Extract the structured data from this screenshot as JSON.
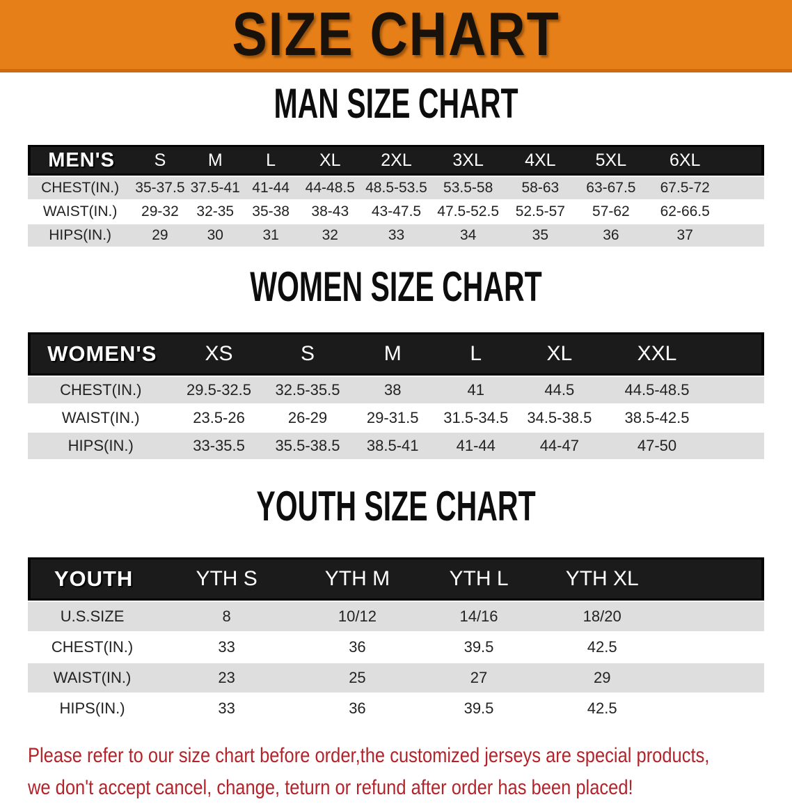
{
  "banner": {
    "title": "SIZE CHART"
  },
  "theme": {
    "banner_bg": "#e77f18",
    "header_bg": "#1b1b1b",
    "header_text": "#ffffff",
    "row_bg": "#ffffff",
    "row_alt_bg": "#dedede",
    "cell_text": "#222222",
    "disclaimer_color": "#b3232a"
  },
  "sections": [
    {
      "title": "MAN SIZE CHART",
      "group_label": "MEN'S",
      "size_headers": [
        "S",
        "M",
        "L",
        "XL",
        "2XL",
        "3XL",
        "4XL",
        "5XL",
        "6XL"
      ],
      "rows": [
        {
          "label": "CHEST(IN.)",
          "values": [
            "35-37.5",
            "37.5-41",
            "41-44",
            "44-48.5",
            "48.5-53.5",
            "53.5-58",
            "58-63",
            "63-67.5",
            "67.5-72"
          ]
        },
        {
          "label": "WAIST(IN.)",
          "values": [
            "29-32",
            "32-35",
            "35-38",
            "38-43",
            "43-47.5",
            "47.5-52.5",
            "52.5-57",
            "57-62",
            "62-66.5"
          ]
        },
        {
          "label": "HIPS(IN.)",
          "values": [
            "29",
            "30",
            "31",
            "32",
            "33",
            "34",
            "35",
            "36",
            "37"
          ]
        }
      ]
    },
    {
      "title": "WOMEN SIZE CHART",
      "group_label": "WOMEN'S",
      "size_headers": [
        "XS",
        "S",
        "M",
        "L",
        "XL",
        "XXL"
      ],
      "rows": [
        {
          "label": "CHEST(IN.)",
          "values": [
            "29.5-32.5",
            "32.5-35.5",
            "38",
            "41",
            "44.5",
            "44.5-48.5"
          ]
        },
        {
          "label": "WAIST(IN.)",
          "values": [
            "23.5-26",
            "26-29",
            "29-31.5",
            "31.5-34.5",
            "34.5-38.5",
            "38.5-42.5"
          ]
        },
        {
          "label": "HIPS(IN.)",
          "values": [
            "33-35.5",
            "35.5-38.5",
            "38.5-41",
            "41-44",
            "44-47",
            "47-50"
          ]
        }
      ]
    },
    {
      "title": "YOUTH SIZE CHART",
      "group_label": "YOUTH",
      "size_headers": [
        "YTH S",
        "YTH M",
        "YTH L",
        "YTH XL"
      ],
      "rows": [
        {
          "label": "U.S.SIZE",
          "values": [
            "8",
            "10/12",
            "14/16",
            "18/20"
          ]
        },
        {
          "label": "CHEST(IN.)",
          "values": [
            "33",
            "36",
            "39.5",
            "42.5"
          ]
        },
        {
          "label": "WAIST(IN.)",
          "values": [
            "23",
            "25",
            "27",
            "29"
          ]
        },
        {
          "label": "HIPS(IN.)",
          "values": [
            "33",
            "36",
            "39.5",
            "42.5"
          ]
        }
      ]
    }
  ],
  "disclaimer": {
    "line1": "Please refer to our size chart before order,the customized jerseys are special products,",
    "line2": "we don't accept cancel, change, teturn or refund after order has been placed!"
  }
}
